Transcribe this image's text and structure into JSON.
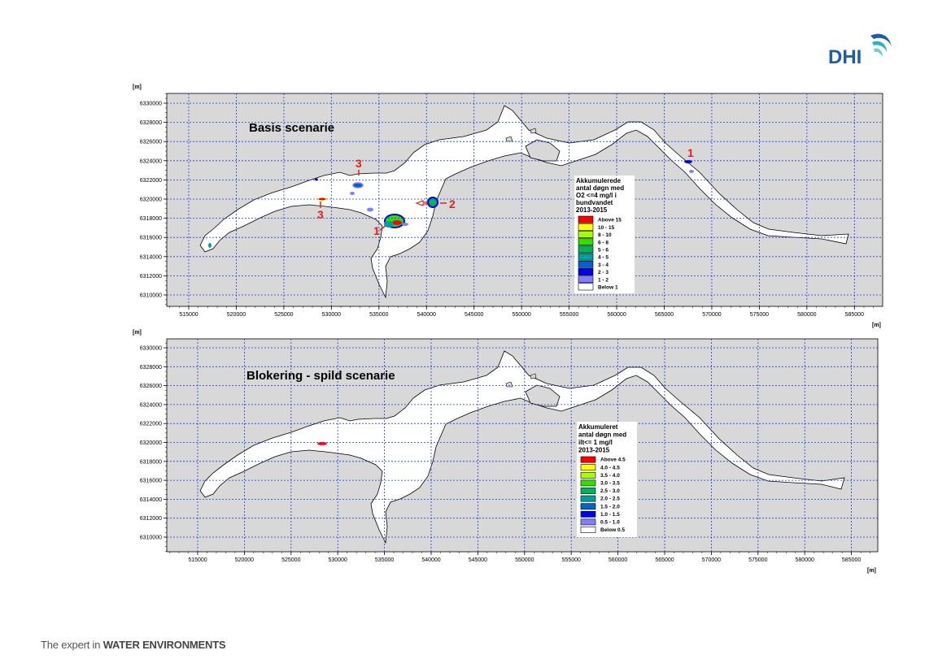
{
  "brand": {
    "logo_text": "DHI",
    "tagline_prefix": "The expert in ",
    "tagline_bold": "WATER ENVIRONMENTS",
    "colors": {
      "logo_blue": "#1d5fa0",
      "logo_teal": "#2bb3b5",
      "tagline": "#555555"
    }
  },
  "maps": [
    {
      "title": "Basis scenarie",
      "y_unit": "[m]",
      "x_unit": "[m]",
      "x_ticks": [
        "515000",
        "520000",
        "525000",
        "530000",
        "535000",
        "540000",
        "545000",
        "550000",
        "555000",
        "560000",
        "565000",
        "570000",
        "575000",
        "580000",
        "585000"
      ],
      "y_ticks": [
        "6330000",
        "6328000",
        "6326000",
        "6324000",
        "6322000",
        "6320000",
        "6318000",
        "6316000",
        "6314000",
        "6312000",
        "6310000"
      ],
      "legend": {
        "title_lines": [
          "Akkumulerede",
          "antal døgn med",
          "O2 <=4 mg/l i",
          "bundvandet",
          "2013-2015"
        ],
        "items": [
          {
            "label": "Above 15",
            "color": "#ff0000"
          },
          {
            "label": "10 - 15",
            "color": "#ffff00"
          },
          {
            "label": "8 - 10",
            "color": "#a8ff00"
          },
          {
            "label": "6 - 8",
            "color": "#33dd00"
          },
          {
            "label": "5 - 6",
            "color": "#00b25a"
          },
          {
            "label": "4 - 5",
            "color": "#009e9e"
          },
          {
            "label": "3 - 4",
            "color": "#0063c8"
          },
          {
            "label": "2 - 3",
            "color": "#0000ee"
          },
          {
            "label": "1 - 2",
            "color": "#8080ff"
          },
          {
            "label": "Below 1",
            "color": "#ffffff"
          }
        ]
      },
      "markers": [
        "1",
        "2",
        "3",
        "3",
        "1"
      ]
    },
    {
      "title": "Blokering - spild scenarie",
      "y_unit": "[m]",
      "x_unit": "[m]",
      "x_ticks": [
        "515000",
        "520000",
        "525000",
        "530000",
        "535000",
        "540000",
        "545000",
        "550000",
        "555000",
        "560000",
        "565000",
        "570000",
        "575000",
        "580000",
        "585000"
      ],
      "y_ticks": [
        "6330000",
        "6328000",
        "6326000",
        "6324000",
        "6322000",
        "6320000",
        "6318000",
        "6316000",
        "6314000",
        "6312000",
        "6310000"
      ],
      "legend": {
        "title_lines": [
          "Akkumuleret",
          "antal døgn med",
          "ilt<= 1 mg/l",
          "2013-2015"
        ],
        "items": [
          {
            "label": "Above 4.5",
            "color": "#ff0000"
          },
          {
            "label": "4.0 - 4.5",
            "color": "#ffff00"
          },
          {
            "label": "3.5 - 4.0",
            "color": "#a8ff00"
          },
          {
            "label": "3.0 - 3.5",
            "color": "#33dd00"
          },
          {
            "label": "2.5 - 3.0",
            "color": "#00b25a"
          },
          {
            "label": "2.0 - 2.5",
            "color": "#009e9e"
          },
          {
            "label": "1.5 - 2.0",
            "color": "#0063c8"
          },
          {
            "label": "1.0 - 1.5",
            "color": "#0000ee"
          },
          {
            "label": "0.5 - 1.0",
            "color": "#8080ff"
          },
          {
            "label": "Below 0.5",
            "color": "#ffffff"
          }
        ]
      },
      "markers": []
    }
  ]
}
